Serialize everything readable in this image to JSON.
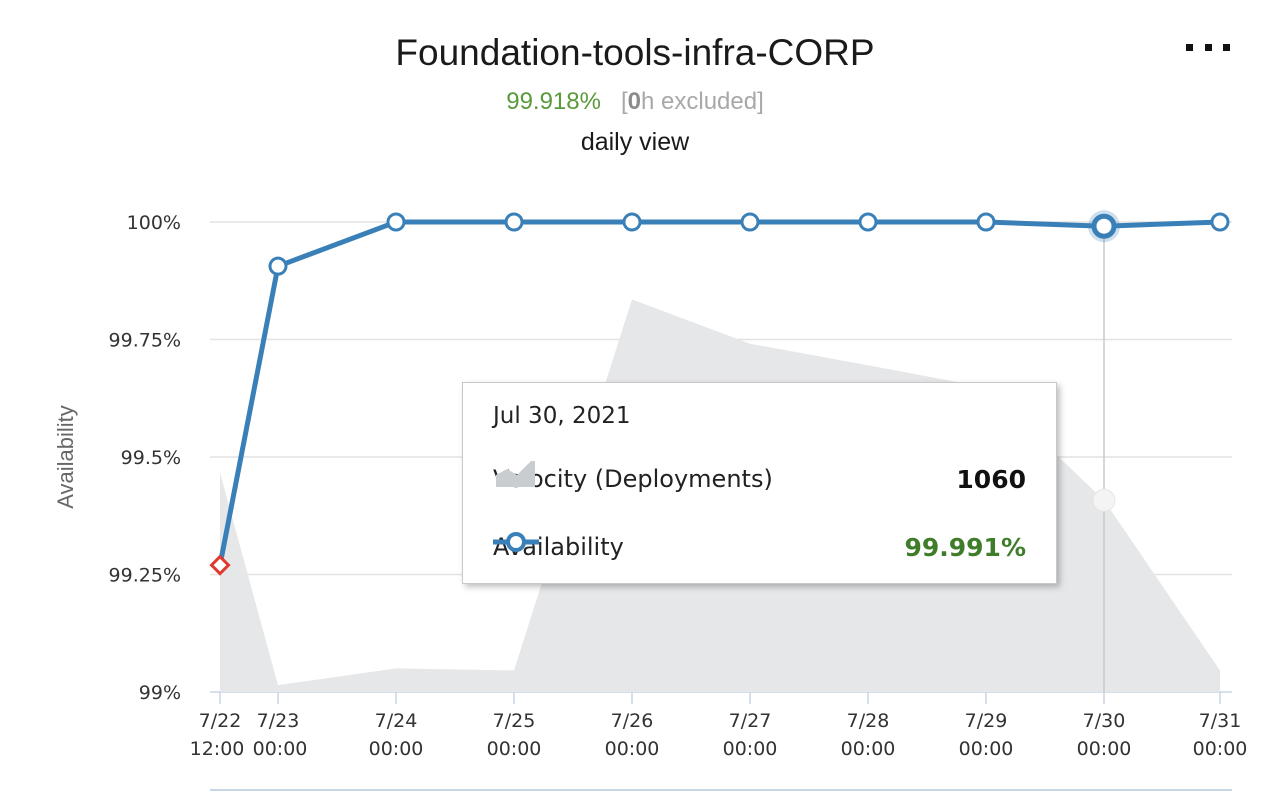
{
  "header": {
    "title": "Foundation-tools-infra-CORP",
    "availability_pct": "99.918%",
    "excluded_prefix": "[",
    "excluded_hours": "0",
    "excluded_suffix": "h excluded]",
    "view_label": "daily view",
    "menu_icon": "more-options-icon"
  },
  "chart_data": {
    "type": "line",
    "ylabel": "Availability",
    "ylim": [
      99,
      100
    ],
    "yticks": [
      "100%",
      "99.75%",
      "99.5%",
      "99.25%",
      "99%"
    ],
    "ytick_values": [
      100,
      99.75,
      99.5,
      99.25,
      99
    ],
    "x": [
      "7/22 12:00",
      "7/23 00:00",
      "7/24 00:00",
      "7/25 00:00",
      "7/26 00:00",
      "7/27 00:00",
      "7/28 00:00",
      "7/29 00:00",
      "7/30 00:00",
      "7/31 00:00"
    ],
    "x_labels": [
      [
        "7/22",
        "12:00"
      ],
      [
        "7/23",
        "00:00"
      ],
      [
        "7/24",
        "00:00"
      ],
      [
        "7/25",
        "00:00"
      ],
      [
        "7/26",
        "00:00"
      ],
      [
        "7/27",
        "00:00"
      ],
      [
        "7/28",
        "00:00"
      ],
      [
        "7/29",
        "00:00"
      ],
      [
        "7/30",
        "00:00"
      ],
      [
        "7/31",
        "00:00"
      ]
    ],
    "series": [
      {
        "name": "Availability",
        "type": "line",
        "color": "#3a80b8",
        "values": [
          99.27,
          99.906,
          100,
          100,
          100,
          100,
          100,
          100,
          99.991,
          100
        ],
        "below_threshold_color": "#e03a2e"
      },
      {
        "name": "Velocity (Deployments)",
        "type": "area",
        "color": "#e6e7e9",
        "relative_values": [
          0.51,
          0.016,
          0.055,
          0.05,
          0.913,
          0.81,
          0.76,
          0.708,
          0.446,
          0.05
        ],
        "known_value": {
          "x": "7/30 00:00",
          "value": 1060
        }
      }
    ],
    "highlight_index": 8,
    "grid": true
  },
  "tooltip": {
    "date": "Jul 30, 2021",
    "velocity_label": "Velocity (Deployments)",
    "velocity_value": "1060",
    "availability_label": "Availability",
    "availability_value": "99.991%"
  }
}
